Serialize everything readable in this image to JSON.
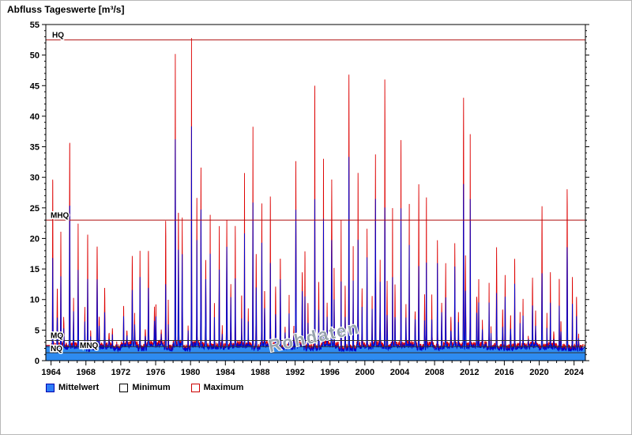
{
  "title": "Abfluss Tageswerte [m³/s]",
  "watermark": "Rohdaten",
  "legend": {
    "items": [
      {
        "label": "Mittelwert",
        "fill": "#2e7df6",
        "border": "#0000b0"
      },
      {
        "label": "Minimum",
        "fill": "#ffffff",
        "border": "#000000"
      },
      {
        "label": "Maximum",
        "fill": "#ffffff",
        "border": "#cc0000"
      }
    ]
  },
  "chart_data": {
    "type": "line",
    "title": "Abfluss Tageswerte [m³/s]",
    "xlabel": "",
    "ylabel": "",
    "xlim": [
      1963.4,
      2025.3
    ],
    "ylim": [
      0,
      55
    ],
    "xticks": [
      1964,
      1968,
      1972,
      1976,
      1980,
      1984,
      1988,
      1992,
      1996,
      2000,
      2004,
      2008,
      2012,
      2016,
      2020,
      2024
    ],
    "yticks": [
      0,
      5,
      10,
      15,
      20,
      25,
      30,
      35,
      40,
      45,
      50,
      55
    ],
    "grid": false,
    "legend_position": "bottom",
    "colors": {
      "max_line": "#dd0000",
      "mean_line": "#0000cc",
      "mean_fill": "#2e8bf0",
      "ref_red": "#b01010",
      "ref_black": "#303030",
      "axis": "#000000",
      "watermark": "#97a3ad"
    },
    "reference_lines": [
      {
        "label": "HQ",
        "value": 52.5,
        "color": "#b01010",
        "label_dx": 8,
        "label_dy": -3
      },
      {
        "label": "MHQ",
        "value": 23.0,
        "color": "#b01010",
        "label_dx": 6,
        "label_dy": -3
      },
      {
        "label": "MQ",
        "value": 3.3,
        "color": "#303030",
        "label_dx": 6,
        "label_dy": -3
      },
      {
        "label": "MNQ",
        "value": 2.3,
        "color": "#303030",
        "label_dx": 43,
        "label_dy": 2
      },
      {
        "label": "NQ",
        "value": 1.3,
        "color": "#303030",
        "label_dx": 6,
        "label_dy": -2
      }
    ],
    "series": [
      {
        "name": "Maximum",
        "style": "spiky-line",
        "color": "#dd0000"
      },
      {
        "name": "Mittelwert",
        "style": "spiky-area",
        "stroke": "#0000cc",
        "fill": "#2e8bf0"
      },
      {
        "name": "Minimum",
        "style": "line",
        "color": "#ffffff"
      }
    ],
    "baseline": 2.5,
    "years": [
      1964,
      1965,
      1966,
      1967,
      1968,
      1969,
      1970,
      1971,
      1972,
      1973,
      1974,
      1975,
      1976,
      1977,
      1978,
      1979,
      1980,
      1981,
      1982,
      1983,
      1984,
      1985,
      1986,
      1987,
      1988,
      1989,
      1990,
      1991,
      1992,
      1993,
      1994,
      1995,
      1996,
      1997,
      1998,
      1999,
      2000,
      2001,
      2002,
      2003,
      2004,
      2005,
      2006,
      2007,
      2008,
      2009,
      2010,
      2011,
      2012,
      2013,
      2014,
      2015,
      2016,
      2017,
      2018,
      2019,
      2020,
      2021,
      2022,
      2023,
      2024
    ],
    "annual_max": [
      30.0,
      21.0,
      35.4,
      22.5,
      21.0,
      19.0,
      12.0,
      5.5,
      9.0,
      17.0,
      17.5,
      18.0,
      9.5,
      23.2,
      50.2,
      23.0,
      52.3,
      31.5,
      24.0,
      21.7,
      23.5,
      22.0,
      30.3,
      38.5,
      26.0,
      26.7,
      17.0,
      10.5,
      32.3,
      17.5,
      44.9,
      33.5,
      29.3,
      23.0,
      47.1,
      30.5,
      21.4,
      33.5,
      46.2,
      25.0,
      35.8,
      25.5,
      29.0,
      26.5,
      20.0,
      16.0,
      19.2,
      42.9,
      37.2,
      13.0,
      12.5,
      18.5,
      14.0,
      17.0,
      10.0,
      13.5,
      25.0,
      14.7,
      13.0,
      27.8,
      10.4
    ]
  }
}
